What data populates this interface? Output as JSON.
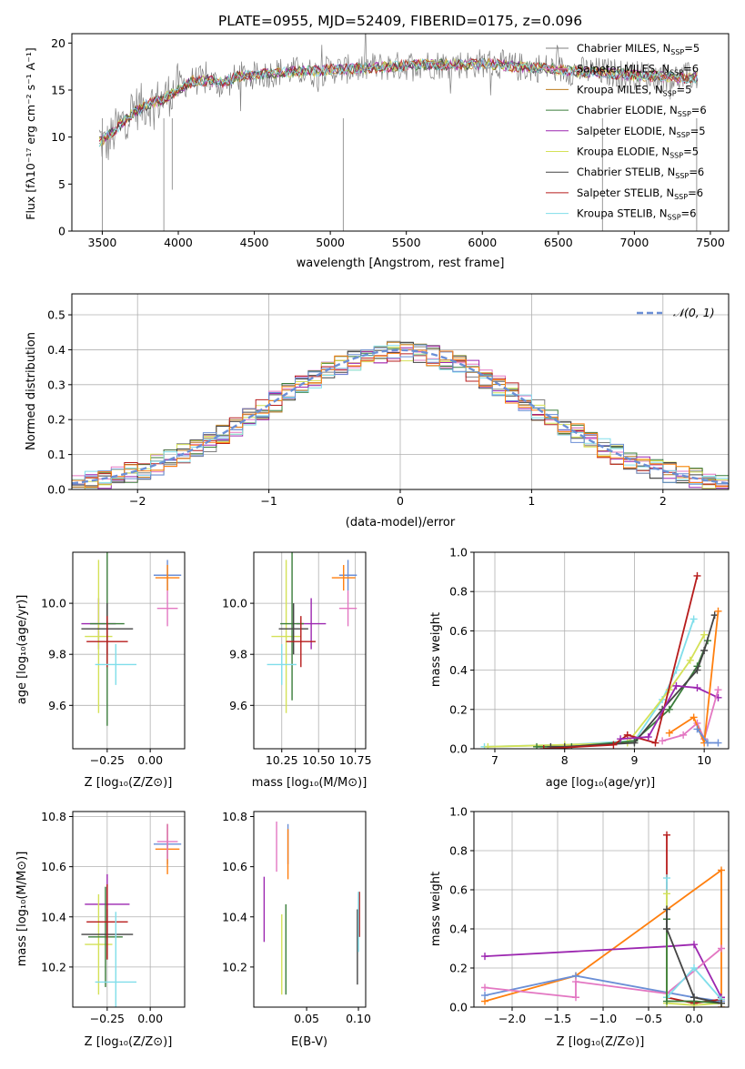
{
  "chart_data": [
    {
      "id": "spectrum",
      "type": "line",
      "title": "PLATE=0955, MJD=52409, FIBERID=0175, z=0.096",
      "xlabel": "wavelength [Angstrom, rest frame]",
      "ylabel": "Flux [fλ10⁻¹⁷ erg cm⁻² s⁻¹ A⁻¹]",
      "xlim": [
        3300,
        7620
      ],
      "ylim": [
        0,
        21
      ],
      "xticks": [
        3500,
        4000,
        4500,
        5000,
        5500,
        6000,
        6500,
        7000,
        7500
      ],
      "yticks": [
        0,
        5,
        10,
        15,
        20
      ],
      "grid": false,
      "legend_position": "top-right",
      "observed": {
        "x": [
          3480,
          3520,
          3600,
          3700,
          3800,
          3900,
          4000,
          4100,
          4200,
          4300,
          4400,
          4500,
          4600,
          4700,
          4800,
          4900,
          5000,
          5100,
          5200,
          5300,
          5400,
          5500,
          5600,
          5700,
          5800,
          5900,
          6000,
          6100,
          6200,
          6300,
          6400,
          6500,
          6600,
          6700,
          6800,
          6900,
          7000,
          7100,
          7200,
          7300,
          7400
        ],
        "y": [
          10,
          9,
          11,
          13,
          13.5,
          14,
          15.5,
          16,
          16,
          15.5,
          16.5,
          16.5,
          16.8,
          17,
          17,
          16.8,
          17.2,
          17.2,
          17.3,
          17.5,
          17.5,
          17.6,
          17.8,
          17.7,
          17.8,
          17.7,
          17.9,
          17.8,
          17.5,
          17.4,
          17.4,
          17.2,
          17.0,
          17.0,
          16.9,
          16.8,
          16.6,
          16.5,
          16.4,
          16.3,
          16.5
        ]
      },
      "model": {
        "x": [
          3480,
          3520,
          3600,
          3700,
          3800,
          3900,
          4000,
          4100,
          4200,
          4300,
          4400,
          4500,
          4600,
          4700,
          4800,
          4900,
          5000,
          5100,
          5200,
          5300,
          5400,
          5500,
          5600,
          5700,
          5800,
          5900,
          6000,
          6100,
          6200,
          6300,
          6400,
          6500,
          6600,
          6700,
          6800,
          6900,
          7000,
          7100,
          7200,
          7300,
          7400
        ],
        "y": [
          9.5,
          9.8,
          11,
          12.5,
          13.5,
          14,
          15,
          16,
          16,
          15.8,
          16.5,
          16.5,
          16.8,
          16.9,
          17,
          17,
          17.2,
          17.2,
          17.3,
          17.4,
          17.5,
          17.6,
          17.7,
          17.7,
          17.7,
          17.7,
          17.8,
          17.7,
          17.5,
          17.4,
          17.3,
          17.2,
          17.0,
          16.9,
          16.8,
          16.7,
          16.6,
          16.5,
          16.4,
          16.3,
          16.3
        ]
      },
      "series": [
        {
          "name": "Chabrier MILES, N",
          "sub": "SSP",
          "suffix": "=5",
          "color": "#7f7f7f"
        },
        {
          "name": "Salpeter MILES, N",
          "sub": "SSP",
          "suffix": "=6",
          "color": "#e377c2"
        },
        {
          "name": "Kroupa MILES, N",
          "sub": "SSP",
          "suffix": "=5",
          "color": "#bd7c1e"
        },
        {
          "name": "Chabrier ELODIE, N",
          "sub": "SSP",
          "suffix": "=6",
          "color": "#3a7d3a"
        },
        {
          "name": "Salpeter ELODIE, N",
          "sub": "SSP",
          "suffix": "=5",
          "color": "#9c27b0"
        },
        {
          "name": "Kroupa ELODIE, N",
          "sub": "SSP",
          "suffix": "=5",
          "color": "#d4e157"
        },
        {
          "name": "Chabrier STELIB, N",
          "sub": "SSP",
          "suffix": "=6",
          "color": "#444444"
        },
        {
          "name": "Salpeter STELIB, N",
          "sub": "SSP",
          "suffix": "=6",
          "color": "#b71c1c"
        },
        {
          "name": "Kroupa STELIB, N",
          "sub": "SSP",
          "suffix": "=6",
          "color": "#80deea"
        }
      ]
    },
    {
      "id": "residuals",
      "type": "histogram",
      "xlabel": "(data-model)/error",
      "ylabel": "Normed distribution",
      "xlim": [
        -2.5,
        2.5
      ],
      "ylim": [
        0,
        0.56
      ],
      "xticks": [
        -2,
        -1,
        0,
        1,
        2
      ],
      "yticks": [
        0.0,
        0.1,
        0.2,
        0.3,
        0.4,
        0.5
      ],
      "grid": true,
      "legend_position": "top-right",
      "legend_label": "𝒩(0, 1)",
      "gaussian": {
        "mean": 0,
        "sigma": 1
      },
      "bin_width": 0.1,
      "base_curve_scale": 0.99
    },
    {
      "id": "age_vs_Z",
      "type": "scatter",
      "xlabel": "Z [log₁₀(Z/Z⊙)]",
      "ylabel": "age  [log₁₀(age/yr)]",
      "xlim": [
        -0.45,
        0.2
      ],
      "ylim": [
        9.43,
        10.2
      ],
      "xticks": [
        -0.25,
        0.0
      ],
      "xticklabels": [
        "−0.25",
        "0.00"
      ],
      "yticks": [
        9.6,
        9.8,
        10.0
      ],
      "grid": true,
      "points": [
        {
          "x": 0.1,
          "y": 10.11,
          "xerr": 0.08,
          "yerr": 0.06,
          "color": "#6b8fd6"
        },
        {
          "x": 0.1,
          "y": 10.1,
          "xerr": 0.07,
          "yerr": 0.05,
          "color": "#ff7f0e"
        },
        {
          "x": 0.1,
          "y": 9.98,
          "xerr": 0.06,
          "yerr": 0.07,
          "color": "#e377c2"
        },
        {
          "x": -0.3,
          "y": 9.92,
          "xerr": 0.1,
          "yerr": 0.1,
          "color": "#9c27b0"
        },
        {
          "x": -0.3,
          "y": 9.87,
          "xerr": 0.08,
          "yerr": 0.3,
          "color": "#d4e157"
        },
        {
          "x": -0.25,
          "y": 9.92,
          "xerr": 0.1,
          "yerr": 0.4,
          "color": "#3a7d3a"
        },
        {
          "x": -0.25,
          "y": 9.9,
          "xerr": 0.15,
          "yerr": 0.1,
          "color": "#444444"
        },
        {
          "x": -0.25,
          "y": 9.85,
          "xerr": 0.12,
          "yerr": 0.1,
          "color": "#b71c1c"
        },
        {
          "x": -0.2,
          "y": 9.76,
          "xerr": 0.12,
          "yerr": 0.08,
          "color": "#80deea"
        }
      ]
    },
    {
      "id": "age_vs_mass",
      "type": "scatter",
      "xlabel": "mass [log₁₀(M/M⊙)]",
      "ylabel": "",
      "xlim": [
        10.06,
        10.82
      ],
      "ylim": [
        9.43,
        10.2
      ],
      "xticks": [
        10.25,
        10.5,
        10.75
      ],
      "xticklabels": [
        "10.25",
        "10.50",
        "10.75"
      ],
      "yticks": [
        9.6,
        9.8,
        10.0
      ],
      "grid": true,
      "points": [
        {
          "x": 10.7,
          "y": 10.11,
          "xerr": 0.06,
          "yerr": 0.06,
          "color": "#6b8fd6"
        },
        {
          "x": 10.67,
          "y": 10.1,
          "xerr": 0.08,
          "yerr": 0.05,
          "color": "#ff7f0e"
        },
        {
          "x": 10.7,
          "y": 9.98,
          "xerr": 0.06,
          "yerr": 0.07,
          "color": "#e377c2"
        },
        {
          "x": 10.45,
          "y": 9.92,
          "xerr": 0.1,
          "yerr": 0.1,
          "color": "#9c27b0"
        },
        {
          "x": 10.28,
          "y": 9.87,
          "xerr": 0.1,
          "yerr": 0.3,
          "color": "#d4e157"
        },
        {
          "x": 10.32,
          "y": 9.92,
          "xerr": 0.08,
          "yerr": 0.3,
          "color": "#3a7d3a"
        },
        {
          "x": 10.33,
          "y": 9.9,
          "xerr": 0.1,
          "yerr": 0.1,
          "color": "#444444"
        },
        {
          "x": 10.38,
          "y": 9.85,
          "xerr": 0.1,
          "yerr": 0.1,
          "color": "#b71c1c"
        },
        {
          "x": 10.25,
          "y": 9.76,
          "xerr": 0.1,
          "yerr": 0.08,
          "color": "#80deea"
        }
      ]
    },
    {
      "id": "massweight_vs_age",
      "type": "line",
      "xlabel": "age  [log₁₀(age/yr)]",
      "ylabel": "mass weight",
      "xlim": [
        6.7,
        10.35
      ],
      "ylim": [
        0,
        1.0
      ],
      "xticks": [
        7,
        8,
        9,
        10
      ],
      "yticks": [
        0.0,
        0.2,
        0.4,
        0.6,
        0.8,
        1.0
      ],
      "grid": true,
      "series": [
        {
          "color": "#80deea",
          "x": [
            6.85,
            8.0,
            9.0,
            9.4,
            9.6,
            9.85
          ],
          "y": [
            0.01,
            0.02,
            0.04,
            0.25,
            0.4,
            0.66
          ]
        },
        {
          "color": "#d4e157",
          "x": [
            6.9,
            8.0,
            8.9,
            9.5,
            9.8,
            10.0
          ],
          "y": [
            0.01,
            0.02,
            0.03,
            0.3,
            0.45,
            0.58
          ]
        },
        {
          "color": "#3a7d3a",
          "x": [
            7.6,
            8.1,
            9.0,
            9.5,
            9.9,
            10.05
          ],
          "y": [
            0.01,
            0.01,
            0.04,
            0.2,
            0.42,
            0.55
          ]
        },
        {
          "color": "#444444",
          "x": [
            7.8,
            8.0,
            9.0,
            9.4,
            9.9,
            10.0,
            10.15
          ],
          "y": [
            0.01,
            0.01,
            0.03,
            0.2,
            0.4,
            0.5,
            0.68
          ]
        },
        {
          "color": "#b71c1c",
          "x": [
            7.7,
            8.7,
            8.9,
            9.3,
            9.9
          ],
          "y": [
            0.0,
            0.02,
            0.07,
            0.03,
            0.88
          ]
        },
        {
          "color": "#9c27b0",
          "x": [
            8.8,
            9.2,
            9.6,
            9.9,
            10.2
          ],
          "y": [
            0.05,
            0.06,
            0.32,
            0.31,
            0.26
          ]
        },
        {
          "color": "#e377c2",
          "x": [
            9.4,
            9.7,
            9.9,
            10.0,
            10.2
          ],
          "y": [
            0.04,
            0.07,
            0.13,
            0.05,
            0.3
          ]
        },
        {
          "color": "#ff7f0e",
          "x": [
            9.5,
            9.85,
            10.0,
            10.2
          ],
          "y": [
            0.08,
            0.16,
            0.03,
            0.7
          ]
        },
        {
          "color": "#6b8fd6",
          "x": [
            9.9,
            10.05,
            10.2
          ],
          "y": [
            0.1,
            0.03,
            0.03
          ]
        }
      ]
    },
    {
      "id": "mass_vs_Z",
      "type": "scatter",
      "xlabel": "Z [log₁₀(Z/Z⊙)]",
      "ylabel": "mass [log₁₀(M/M⊙)]",
      "xlim": [
        -0.45,
        0.2
      ],
      "ylim": [
        10.04,
        10.82
      ],
      "xticks": [
        -0.25,
        0.0
      ],
      "xticklabels": [
        "−0.25",
        "0.00"
      ],
      "yticks": [
        10.2,
        10.4,
        10.6,
        10.8
      ],
      "grid": true,
      "points": [
        {
          "x": 0.1,
          "y": 10.69,
          "xerr": 0.08,
          "yerr": 0.08,
          "color": "#6b8fd6"
        },
        {
          "x": 0.1,
          "y": 10.67,
          "xerr": 0.07,
          "yerr": 0.1,
          "color": "#ff7f0e"
        },
        {
          "x": 0.1,
          "y": 10.7,
          "xerr": 0.06,
          "yerr": 0.07,
          "color": "#e377c2"
        },
        {
          "x": -0.25,
          "y": 10.45,
          "xerr": 0.13,
          "yerr": 0.12,
          "color": "#9c27b0"
        },
        {
          "x": -0.3,
          "y": 10.29,
          "xerr": 0.08,
          "yerr": 0.2,
          "color": "#d4e157"
        },
        {
          "x": -0.26,
          "y": 10.32,
          "xerr": 0.1,
          "yerr": 0.2,
          "color": "#3a7d3a"
        },
        {
          "x": -0.25,
          "y": 10.33,
          "xerr": 0.15,
          "yerr": 0.1,
          "color": "#444444"
        },
        {
          "x": -0.25,
          "y": 10.38,
          "xerr": 0.12,
          "yerr": 0.15,
          "color": "#b71c1c"
        },
        {
          "x": -0.2,
          "y": 10.14,
          "xerr": 0.12,
          "yerr": 0.28,
          "color": "#80deea"
        }
      ]
    },
    {
      "id": "mass_vs_EBV",
      "type": "scatter",
      "xlabel": "E(B-V)",
      "ylabel": "",
      "xlim": [
        -0.001,
        0.107
      ],
      "ylim": [
        10.04,
        10.82
      ],
      "xticks": [
        0.05,
        0.1
      ],
      "xticklabels": [
        "0.05",
        "0.10"
      ],
      "yticks": [
        10.2,
        10.4,
        10.6,
        10.8
      ],
      "grid": false,
      "points": [
        {
          "x": 0.032,
          "y": 10.69,
          "xerr": 0,
          "yerr": 0.08,
          "color": "#6b8fd6"
        },
        {
          "x": 0.032,
          "y": 10.65,
          "xerr": 0,
          "yerr": 0.1,
          "color": "#ff7f0e"
        },
        {
          "x": 0.021,
          "y": 10.68,
          "xerr": 0,
          "yerr": 0.1,
          "color": "#e377c2"
        },
        {
          "x": 0.009,
          "y": 10.43,
          "xerr": 0,
          "yerr": 0.13,
          "color": "#9c27b0"
        },
        {
          "x": 0.026,
          "y": 10.25,
          "xerr": 0,
          "yerr": 0.16,
          "color": "#d4e157"
        },
        {
          "x": 0.03,
          "y": 10.27,
          "xerr": 0,
          "yerr": 0.18,
          "color": "#3a7d3a"
        },
        {
          "x": 0.099,
          "y": 10.28,
          "xerr": 0,
          "yerr": 0.15,
          "color": "#444444"
        },
        {
          "x": 0.101,
          "y": 10.41,
          "xerr": 0,
          "yerr": 0.09,
          "color": "#b71c1c"
        },
        {
          "x": 0.1,
          "y": 10.38,
          "xerr": 0,
          "yerr": 0.12,
          "color": "#80deea"
        }
      ]
    },
    {
      "id": "massweight_vs_Z",
      "type": "line",
      "xlabel": "Z [log₁₀(Z/Z⊙)]",
      "ylabel": "mass weight",
      "xlim": [
        -2.42,
        0.38
      ],
      "ylim": [
        0,
        1.0
      ],
      "xticks": [
        -2.0,
        -1.5,
        -1.0,
        -0.5,
        0.0
      ],
      "xticklabels": [
        "−2.0",
        "−1.5",
        "−1.0",
        "−0.5",
        "0.0"
      ],
      "yticks": [
        0.0,
        0.2,
        0.4,
        0.6,
        0.8,
        1.0
      ],
      "grid": true,
      "series": [
        {
          "color": "#ff7f0e",
          "x": [
            -2.3,
            -1.3,
            0.3,
            0.3
          ],
          "y": [
            0.03,
            0.16,
            0.7,
            0.0
          ]
        },
        {
          "color": "#6b8fd6",
          "x": [
            -2.3,
            -1.3,
            0.0,
            0.3
          ],
          "y": [
            0.06,
            0.16,
            0.05,
            0.03
          ]
        },
        {
          "color": "#9c27b0",
          "x": [
            -2.3,
            -0.3,
            0.0,
            0.3
          ],
          "y": [
            0.26,
            0.31,
            0.32,
            0.05
          ]
        },
        {
          "color": "#e377c2",
          "x": [
            -2.3,
            -1.3,
            -1.3,
            -0.3,
            0.3
          ],
          "y": [
            0.1,
            0.05,
            0.13,
            0.07,
            0.3
          ]
        },
        {
          "color": "#b71c1c",
          "x": [
            -0.3,
            -0.3,
            0.0,
            0.3
          ],
          "y": [
            0.88,
            0.05,
            0.02,
            0.04
          ]
        },
        {
          "color": "#80deea",
          "x": [
            -0.3,
            -0.3,
            0.0,
            0.3
          ],
          "y": [
            0.66,
            0.05,
            0.2,
            0.04
          ]
        },
        {
          "color": "#d4e157",
          "x": [
            -0.3,
            -0.3,
            0.0,
            0.3
          ],
          "y": [
            0.58,
            0.02,
            0.01,
            0.02
          ]
        },
        {
          "color": "#3a7d3a",
          "x": [
            -0.3,
            -0.3,
            0.0,
            0.3
          ],
          "y": [
            0.45,
            0.03,
            0.03,
            0.02
          ]
        },
        {
          "color": "#444444",
          "x": [
            -0.3,
            -0.3,
            0.0,
            0.3
          ],
          "y": [
            0.5,
            0.4,
            0.05,
            0.02
          ]
        }
      ]
    }
  ]
}
